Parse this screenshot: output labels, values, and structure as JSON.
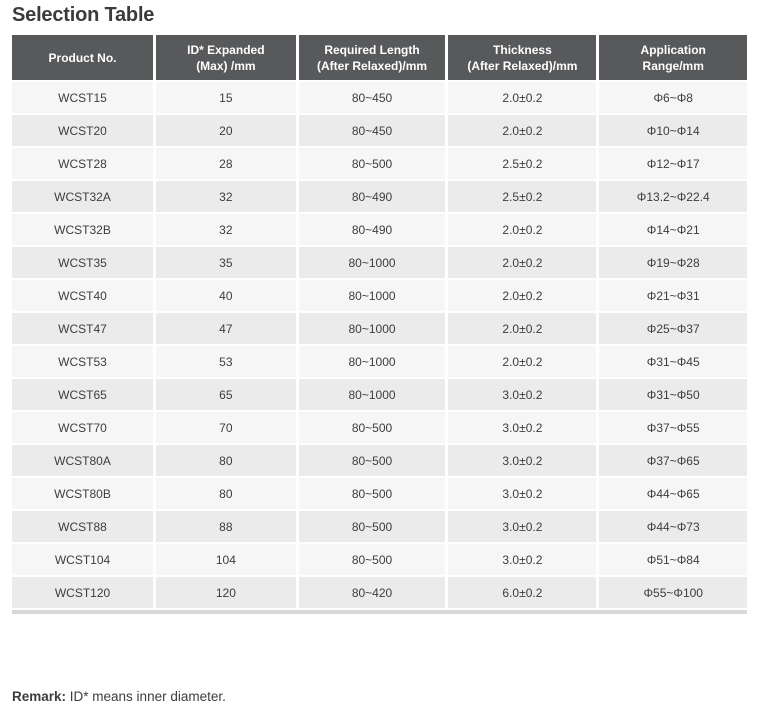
{
  "page": {
    "title": "Selection Table"
  },
  "table": {
    "columns": [
      "Product No.",
      "ID* Expanded\n(Max) /mm",
      "Required Length\n(After Relaxed)/mm",
      "Thickness\n(After Relaxed)/mm",
      "Application\nRange/mm"
    ],
    "rows": [
      [
        "WCST15",
        "15",
        "80~450",
        "2.0±0.2",
        "Φ6~Φ8"
      ],
      [
        "WCST20",
        "20",
        "80~450",
        "2.0±0.2",
        "Φ10~Φ14"
      ],
      [
        "WCST28",
        "28",
        "80~500",
        "2.5±0.2",
        "Φ12~Φ17"
      ],
      [
        "WCST32A",
        "32",
        "80~490",
        "2.5±0.2",
        "Φ13.2~Φ22.4"
      ],
      [
        "WCST32B",
        "32",
        "80~490",
        "2.0±0.2",
        "Φ14~Φ21"
      ],
      [
        "WCST35",
        "35",
        "80~1000",
        "2.0±0.2",
        "Φ19~Φ28"
      ],
      [
        "WCST40",
        "40",
        "80~1000",
        "2.0±0.2",
        "Φ21~Φ31"
      ],
      [
        "WCST47",
        "47",
        "80~1000",
        "2.0±0.2",
        "Φ25~Φ37"
      ],
      [
        "WCST53",
        "53",
        "80~1000",
        "2.0±0.2",
        "Φ31~Φ45"
      ],
      [
        "WCST65",
        "65",
        "80~1000",
        "3.0±0.2",
        "Φ31~Φ50"
      ],
      [
        "WCST70",
        "70",
        "80~500",
        "3.0±0.2",
        "Φ37~Φ55"
      ],
      [
        "WCST80A",
        "80",
        "80~500",
        "3.0±0.2",
        "Φ37~Φ65"
      ],
      [
        "WCST80B",
        "80",
        "80~500",
        "3.0±0.2",
        "Φ44~Φ65"
      ],
      [
        "WCST88",
        "88",
        "80~500",
        "3.0±0.2",
        "Φ44~Φ73"
      ],
      [
        "WCST104",
        "104",
        "80~500",
        "3.0±0.2",
        "Φ51~Φ84"
      ],
      [
        "WCST120",
        "120",
        "80~420",
        "6.0±0.2",
        "Φ55~Φ100"
      ]
    ]
  },
  "remark": {
    "label": "Remark:",
    "text": " ID* means inner diameter."
  },
  "colors": {
    "header_bg": "#58595b",
    "header_text": "#ffffff",
    "row_odd": "#f6f6f7",
    "row_even": "#ebebec",
    "cell_text": "#3d3d3d",
    "bottom_strip": "#d8d8d8",
    "title_text": "#3b3b3b"
  }
}
